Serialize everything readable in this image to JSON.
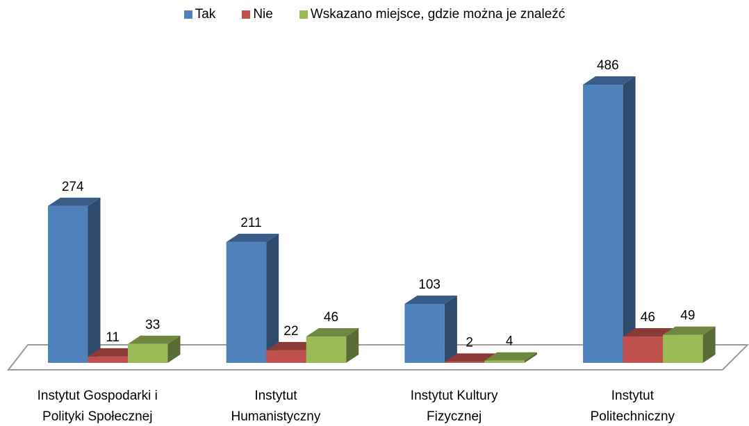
{
  "chart_data": {
    "type": "bar3d",
    "categories": [
      "Instytut Gospodarki i\nPolityki Społecznej",
      "Instytut\nHumanistyczny",
      "Instytut Kultury\nFizycznej",
      "Instytut\nPolitechniczny"
    ],
    "series": [
      {
        "name": "Tak",
        "color": "#4f81bd",
        "values": [
          274,
          211,
          103,
          486
        ]
      },
      {
        "name": "Nie",
        "color": "#c0504d",
        "values": [
          11,
          22,
          2,
          46
        ]
      },
      {
        "name": "Wskazano miejsce, gdzie można je znaleźć",
        "color": "#9bbb59",
        "values": [
          33,
          46,
          4,
          49
        ]
      }
    ],
    "legend": "top"
  }
}
